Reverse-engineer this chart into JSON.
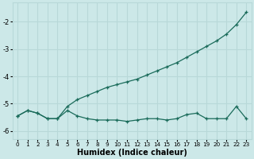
{
  "xlabel": "Humidex (Indice chaleur)",
  "bg_color": "#cce8e8",
  "grid_color": "#b8d8d8",
  "line_color": "#1a6b5a",
  "xlim": [
    -0.5,
    23.5
  ],
  "ylim": [
    -6.3,
    -1.3
  ],
  "yticks": [
    -6,
    -5,
    -4,
    -3,
    -2
  ],
  "xticks": [
    0,
    1,
    2,
    3,
    4,
    5,
    6,
    7,
    8,
    9,
    10,
    11,
    12,
    13,
    14,
    15,
    16,
    17,
    18,
    19,
    20,
    21,
    22,
    23
  ],
  "line1_x": [
    0,
    1,
    2,
    3,
    4,
    5,
    6,
    7,
    8,
    9,
    10,
    11,
    12,
    13,
    14,
    15,
    16,
    17,
    18,
    19,
    20,
    21,
    22,
    23
  ],
  "line1_y": [
    -5.45,
    -5.25,
    -5.35,
    -5.55,
    -5.55,
    -5.25,
    -5.45,
    -5.55,
    -5.6,
    -5.6,
    -5.6,
    -5.65,
    -5.6,
    -5.55,
    -5.55,
    -5.6,
    -5.55,
    -5.4,
    -5.35,
    -5.55,
    -5.55,
    -5.55,
    -5.1,
    -5.55
  ],
  "line2_x": [
    0,
    1,
    2,
    3,
    4,
    5,
    6,
    7,
    8,
    9,
    10,
    11,
    12,
    13,
    14,
    15,
    16,
    17,
    18,
    19,
    20,
    21,
    22,
    23
  ],
  "line2_y": [
    -5.45,
    -5.25,
    -5.35,
    -5.55,
    -5.55,
    -5.1,
    -4.85,
    -4.7,
    -4.55,
    -4.4,
    -4.3,
    -4.2,
    -4.1,
    -3.95,
    -3.8,
    -3.65,
    -3.5,
    -3.3,
    -3.1,
    -2.9,
    -2.7,
    -2.45,
    -2.1,
    -1.65
  ],
  "line3_x": [
    0,
    5,
    23
  ],
  "line3_y": [
    -5.45,
    -5.1,
    -1.65
  ]
}
